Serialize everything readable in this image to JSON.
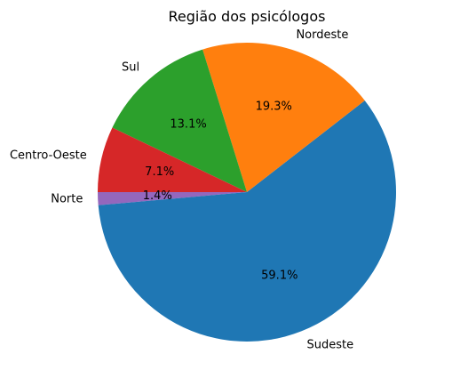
{
  "chart_data": {
    "type": "pie",
    "title": "Região dos psicólogos",
    "start_angle": 180,
    "direction": "counterclockwise",
    "slices": [
      {
        "label": "Norte",
        "value": 1.4,
        "pct_label": "1.4%",
        "color": "#9467bd"
      },
      {
        "label": "Sudeste",
        "value": 59.1,
        "pct_label": "59.1%",
        "color": "#1f77b4"
      },
      {
        "label": "Nordeste",
        "value": 19.3,
        "pct_label": "19.3%",
        "color": "#ff7f0e"
      },
      {
        "label": "Sul",
        "value": 13.1,
        "pct_label": "13.1%",
        "color": "#2ca02c"
      },
      {
        "label": "Centro-Oeste",
        "value": 7.1,
        "pct_label": "7.1%",
        "color": "#d62728"
      }
    ]
  }
}
